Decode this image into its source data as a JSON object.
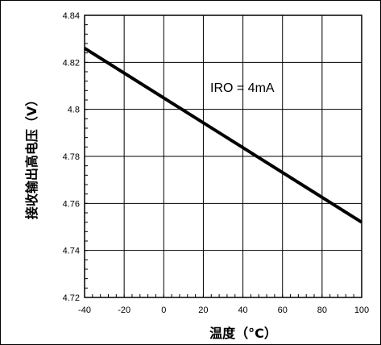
{
  "chart_data": {
    "type": "line",
    "title": "",
    "xlabel": "温度（°C）",
    "ylabel": "接收输出高电压（V）",
    "annotation": "IRO = 4mA",
    "xlim": [
      -40,
      100
    ],
    "ylim": [
      4.72,
      4.84
    ],
    "x_ticks": [
      -40,
      -20,
      0,
      20,
      40,
      60,
      80,
      100
    ],
    "y_ticks": [
      4.72,
      4.74,
      4.76,
      4.78,
      4.8,
      4.82,
      4.84
    ],
    "x_tick_labels": [
      "-40",
      "-20",
      "0",
      "20",
      "40",
      "60",
      "80",
      "100"
    ],
    "y_tick_labels": [
      "4.72",
      "4.74",
      "4.76",
      "4.78",
      "4.8",
      "4.82",
      "4.84"
    ],
    "grid": true,
    "series": [
      {
        "x": [
          -40,
          100
        ],
        "y": [
          4.826,
          4.752
        ]
      }
    ]
  }
}
